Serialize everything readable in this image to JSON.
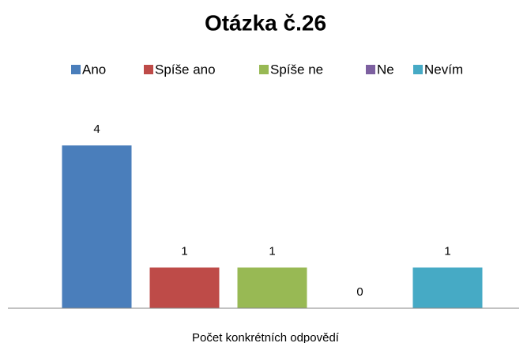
{
  "chart_data": {
    "type": "bar",
    "title": "Otázka č.26",
    "categories": [
      "Počet konkrétních odpovědí"
    ],
    "series": [
      {
        "name": "Ano",
        "color": "#4a7ebb",
        "values": [
          4
        ]
      },
      {
        "name": "Spíše ano",
        "color": "#be4b48",
        "values": [
          1
        ]
      },
      {
        "name": "Spíše ne",
        "color": "#98b954",
        "values": [
          1
        ]
      },
      {
        "name": "Ne",
        "color": "#7d60a0",
        "values": [
          0
        ]
      },
      {
        "name": "Nevím",
        "color": "#46aac5",
        "values": [
          1
        ]
      }
    ],
    "legend": "top"
  }
}
